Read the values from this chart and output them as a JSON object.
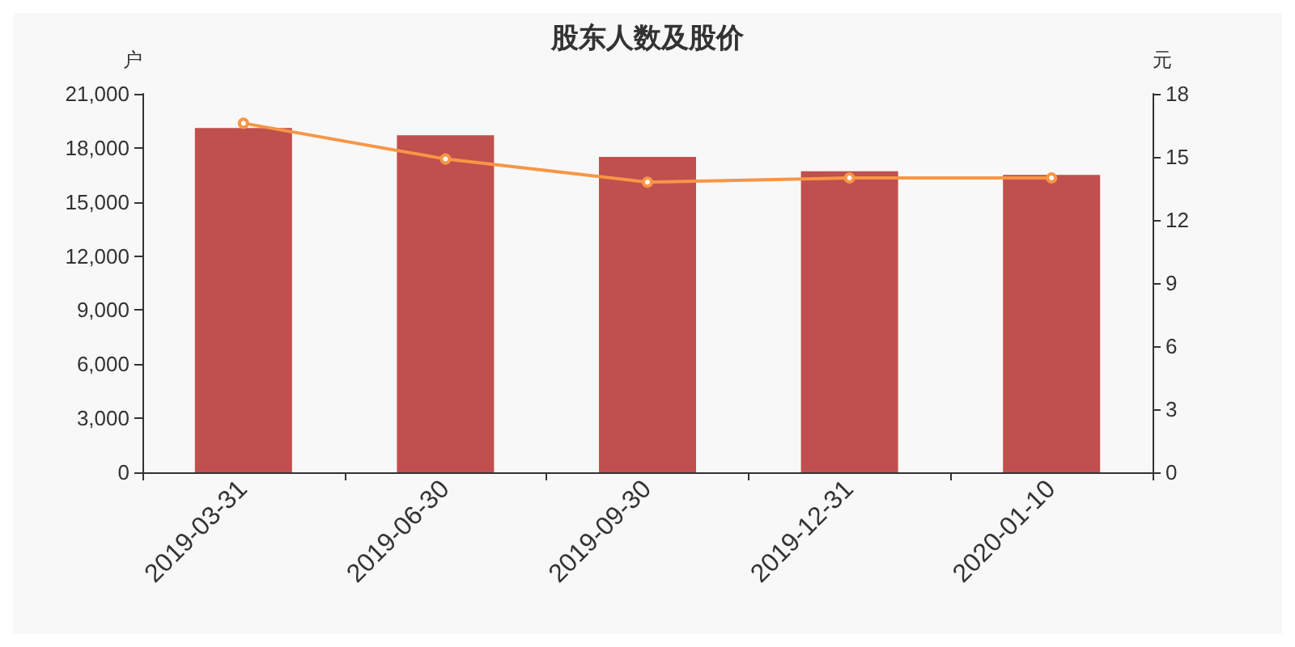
{
  "chart_data": {
    "type": "bar",
    "title": "股东人数及股价",
    "ylabel": "户",
    "y2label": "元",
    "categories": [
      "2019-03-31",
      "2019-06-30",
      "2019-09-30",
      "2019-12-31",
      "2020-01-10"
    ],
    "series": [
      {
        "color": "#c0504d",
        "values": [
          19100,
          18700,
          17500,
          16700,
          16500
        ]
      },
      {
        "type": "line",
        "axis": "y2",
        "color": "#f79646",
        "marker": "circle",
        "values": [
          16.6,
          14.9,
          13.8,
          14.0,
          14.0
        ]
      }
    ],
    "ylim": [
      0,
      21000
    ],
    "yticks": [
      0,
      {
        "value": 3000,
        "label": "3,000"
      },
      {
        "value": 6000,
        "label": "6,000"
      },
      {
        "value": 9000,
        "label": "9,000"
      },
      {
        "value": 12000,
        "label": "12,000"
      },
      {
        "value": 15000,
        "label": "15,000"
      },
      {
        "value": 18000,
        "label": "18,000"
      },
      {
        "value": 21000,
        "label": "21,000"
      }
    ],
    "y2lim": [
      0,
      18
    ],
    "y2ticks": [
      0,
      3,
      6,
      9,
      12,
      15,
      18
    ],
    "grid": false
  }
}
